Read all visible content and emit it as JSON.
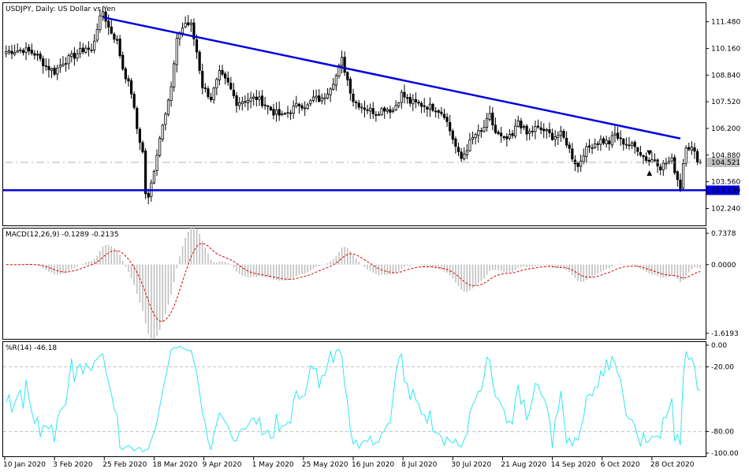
{
  "chart_data": {
    "type": "candlestick",
    "symbol_title": "USDJPY, Daily:  US Dollar vs Yen",
    "timeframe": "Daily",
    "current_price": "104.521",
    "support_level": "103.139",
    "price_axis_labels": [
      "111.480",
      "110.160",
      "108.840",
      "107.520",
      "106.200",
      "104.880",
      "103.560",
      "102.240"
    ],
    "price_range": [
      101.4,
      112.4
    ],
    "x_axis_labels": [
      "10 Jan 2020",
      "3 Feb 2020",
      "25 Feb 2020",
      "18 Mar 2020",
      "9 Apr 2020",
      "1 May 2020",
      "25 May 2020",
      "16 Jun 2020",
      "8 Jul 2020",
      "30 Jul 2020",
      "21 Aug 2020",
      "14 Sep 2020",
      "6 Oct 2020",
      "28 Oct 2020"
    ],
    "trendline_down": {
      "from_price": 111.7,
      "to_price": 105.7
    },
    "horizontal_support": 103.139,
    "price_anchors": [
      [
        0,
        110.0
      ],
      [
        6,
        110.1
      ],
      [
        10,
        109.9
      ],
      [
        14,
        109.3
      ],
      [
        17,
        109.0
      ],
      [
        20,
        109.5
      ],
      [
        24,
        109.8
      ],
      [
        28,
        110.2
      ],
      [
        30,
        110.0
      ],
      [
        32,
        111.2
      ],
      [
        34,
        112.0
      ],
      [
        36,
        111.2
      ],
      [
        39,
        110.5
      ],
      [
        41,
        109.2
      ],
      [
        44,
        108.0
      ],
      [
        46,
        106.2
      ],
      [
        48,
        105.0
      ],
      [
        49,
        103.0
      ],
      [
        50,
        102.7
      ],
      [
        52,
        104.2
      ],
      [
        55,
        106.5
      ],
      [
        58,
        108.2
      ],
      [
        60,
        110.5
      ],
      [
        61,
        111.0
      ],
      [
        63,
        111.4
      ],
      [
        65,
        111.3
      ],
      [
        67,
        110.0
      ],
      [
        69,
        108.3
      ],
      [
        72,
        107.7
      ],
      [
        75,
        108.9
      ],
      [
        78,
        108.4
      ],
      [
        81,
        107.5
      ],
      [
        84,
        107.6
      ],
      [
        88,
        107.7
      ],
      [
        91,
        107.4
      ],
      [
        94,
        107.0
      ],
      [
        97,
        106.8
      ],
      [
        100,
        107.1
      ],
      [
        103,
        107.4
      ],
      [
        106,
        107.3
      ],
      [
        108,
        107.7
      ],
      [
        111,
        107.6
      ],
      [
        114,
        108.3
      ],
      [
        116,
        108.8
      ],
      [
        118,
        109.6
      ],
      [
        120,
        108.6
      ],
      [
        122,
        107.6
      ],
      [
        125,
        107.3
      ],
      [
        128,
        107.1
      ],
      [
        130,
        107.0
      ],
      [
        133,
        107.2
      ],
      [
        136,
        107.1
      ],
      [
        139,
        107.9
      ],
      [
        142,
        107.5
      ],
      [
        145,
        107.4
      ],
      [
        148,
        107.3
      ],
      [
        151,
        107.2
      ],
      [
        154,
        106.9
      ],
      [
        157,
        105.7
      ],
      [
        159,
        104.9
      ],
      [
        160,
        104.7
      ],
      [
        163,
        105.5
      ],
      [
        165,
        105.9
      ],
      [
        167,
        106.0
      ],
      [
        170,
        106.8
      ],
      [
        172,
        106.0
      ],
      [
        175,
        105.6
      ],
      [
        178,
        105.8
      ],
      [
        180,
        106.6
      ],
      [
        183,
        105.9
      ],
      [
        186,
        106.2
      ],
      [
        189,
        106.1
      ],
      [
        192,
        105.8
      ],
      [
        195,
        105.9
      ],
      [
        197,
        105.5
      ],
      [
        199,
        104.8
      ],
      [
        201,
        104.3
      ],
      [
        203,
        105.0
      ],
      [
        206,
        105.4
      ],
      [
        209,
        105.6
      ],
      [
        212,
        105.5
      ],
      [
        214,
        105.9
      ],
      [
        216,
        105.6
      ],
      [
        219,
        105.4
      ],
      [
        222,
        105.2
      ],
      [
        224,
        104.8
      ],
      [
        226,
        104.6
      ],
      [
        228,
        104.7
      ],
      [
        230,
        104.3
      ],
      [
        232,
        104.5
      ],
      [
        234,
        104.6
      ],
      [
        236,
        103.7
      ],
      [
        237,
        103.3
      ],
      [
        238,
        104.5
      ],
      [
        239,
        105.4
      ],
      [
        241,
        105.2
      ],
      [
        243,
        104.7
      ],
      [
        244,
        104.5
      ]
    ],
    "macd": {
      "label": "MACD(12,26,9) -0.1289 -0.2135",
      "axis_labels": [
        "0.7378",
        "0.0000",
        "-1.6193"
      ],
      "range": [
        -1.75,
        0.85
      ]
    },
    "williams_r": {
      "label": "%R(14) -46.18",
      "axis_labels": [
        "0.00",
        "-20.00",
        "-80.00",
        "-100.00"
      ],
      "range": [
        -100,
        0
      ],
      "levels": [
        -20,
        -80
      ]
    }
  }
}
